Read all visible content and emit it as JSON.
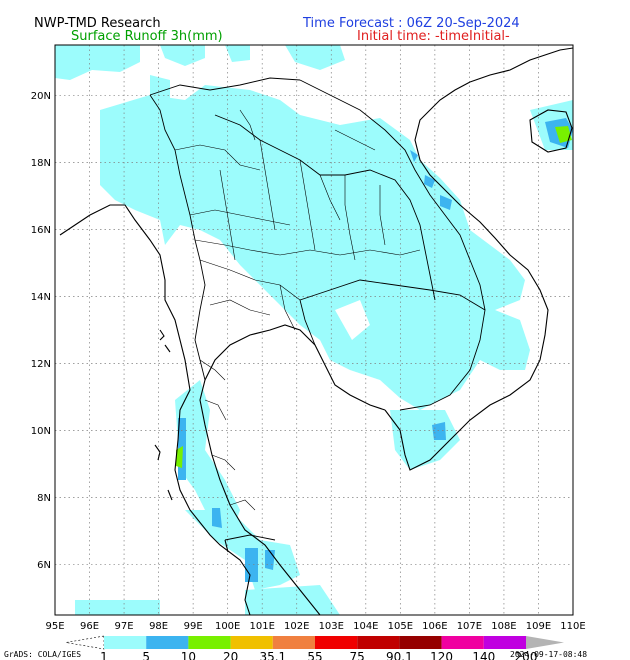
{
  "header": {
    "org": "NWP-TMD Research",
    "field": "Surface Runoff 3h(mm)",
    "forecast": "Time Forecast : 06Z 20-Sep-2024",
    "initial": "Initial time: -timeInitial-"
  },
  "axes": {
    "lon_labels": [
      "95E",
      "96E",
      "97E",
      "98E",
      "99E",
      "100E",
      "101E",
      "102E",
      "103E",
      "104E",
      "105E",
      "106E",
      "107E",
      "108E",
      "109E",
      "110E"
    ],
    "lat_labels": [
      "6N",
      "8N",
      "10N",
      "12N",
      "14N",
      "16N",
      "18N",
      "20N"
    ],
    "lon_range": [
      95,
      110
    ],
    "lat_range": [
      4.5,
      21.5
    ]
  },
  "colorbar": {
    "labels": [
      "1",
      "5",
      "10",
      "20",
      "35.1",
      "55",
      "75",
      "90.1",
      "120",
      "140",
      "200"
    ],
    "colors": [
      "#9cfcfc",
      "#3cb4f0",
      "#78f000",
      "#f0c000",
      "#f08040",
      "#f00000",
      "#c00000",
      "#960000",
      "#f000a0",
      "#c000e0"
    ]
  },
  "footer": {
    "credit": "GrADS: COLA/IGES",
    "timestamp": "2024-09-17-08:48"
  },
  "colors": {
    "land": "#ffffff",
    "runoff_low": "#9cfcfc",
    "runoff_mid": "#3cb4f0",
    "runoff_high": "#78f000"
  }
}
